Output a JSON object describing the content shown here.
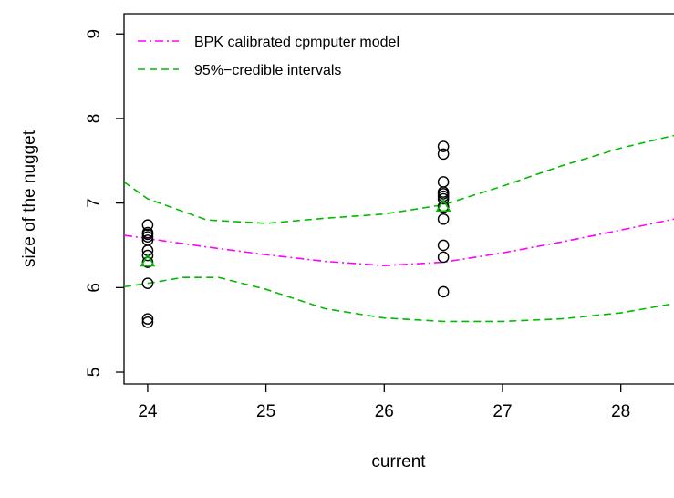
{
  "chart_data": {
    "type": "scatter",
    "xlabel": "current",
    "ylabel": "size of the nugget",
    "xlim": [
      23.8,
      28.45
    ],
    "ylim": [
      4.86,
      9.24
    ],
    "x_ticks": [
      24,
      25,
      26,
      27,
      28
    ],
    "y_ticks": [
      5,
      6,
      7,
      8,
      9
    ],
    "legend_position": "top-left",
    "grid": false,
    "colors": {
      "model": "#ff00ff",
      "intervals": "#00bb00",
      "observed": "#000000",
      "mean_marker": "#00bb00"
    },
    "series": [
      {
        "name": "BPK calibrated cpmputer model",
        "kind": "line",
        "style": "dash-dot",
        "x": [
          23.8,
          24.0,
          24.5,
          25.0,
          25.5,
          26.0,
          26.5,
          27.0,
          27.5,
          28.0,
          28.45
        ],
        "y": [
          6.62,
          6.58,
          6.48,
          6.39,
          6.31,
          6.26,
          6.3,
          6.41,
          6.54,
          6.68,
          6.81
        ]
      },
      {
        "name": "95%−credible intervals",
        "kind": "line",
        "style": "dashed",
        "x": [
          23.8,
          24.0,
          24.5,
          25.0,
          25.5,
          26.0,
          26.5,
          27.0,
          27.5,
          28.0,
          28.45
        ],
        "y": [
          7.25,
          7.05,
          6.8,
          6.76,
          6.82,
          6.87,
          6.98,
          7.2,
          7.44,
          7.65,
          7.8
        ]
      },
      {
        "kind": "line",
        "style": "dashed",
        "x": [
          23.8,
          24.0,
          24.3,
          24.6,
          25.0,
          25.5,
          26.0,
          26.5,
          27.0,
          27.5,
          28.0,
          28.45
        ],
        "y": [
          6.01,
          6.05,
          6.12,
          6.12,
          5.98,
          5.75,
          5.64,
          5.6,
          5.6,
          5.63,
          5.7,
          5.81
        ]
      },
      {
        "kind": "points",
        "marker": "circle",
        "x": [
          24,
          24,
          24,
          24,
          24,
          24,
          24,
          24,
          24,
          24,
          24,
          26.5,
          26.5,
          26.5,
          26.5,
          26.5,
          26.5,
          26.5,
          26.5,
          26.5,
          26.5,
          26.5,
          26.5,
          26.5
        ],
        "y": [
          6.74,
          6.65,
          6.63,
          6.6,
          6.56,
          6.44,
          6.38,
          6.3,
          6.05,
          5.63,
          5.59,
          7.67,
          7.58,
          7.25,
          7.13,
          7.11,
          7.08,
          7.05,
          6.95,
          6.81,
          6.5,
          6.36,
          5.95,
          6.96
        ]
      },
      {
        "kind": "points",
        "marker": "triangle",
        "x": [
          24,
          26.5
        ],
        "y": [
          6.31,
          6.96
        ]
      }
    ]
  }
}
